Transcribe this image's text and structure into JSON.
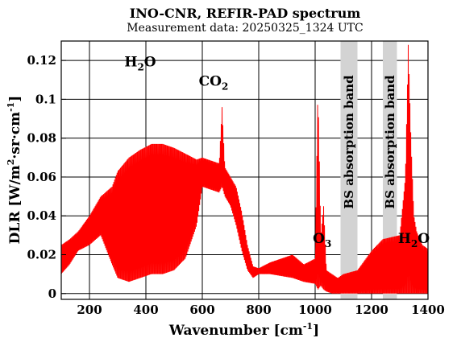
{
  "chart_data": {
    "type": "line",
    "title": "INO-CNR, REFIR-PAD spectrum",
    "subtitle": "Measurement data: 20250325_1324 UTC",
    "xlabel": {
      "base": "Wavenumber [cm",
      "sup": "-1",
      "tail": "]"
    },
    "ylabel": {
      "p1": "DLR [W/m",
      "sup1": "2",
      "p2": "·sr·cm",
      "sup2": "-1",
      "p3": "]"
    },
    "xlim": [
      100,
      1400
    ],
    "ylim": [
      -0.003,
      0.13
    ],
    "x_ticks": [
      200,
      400,
      600,
      800,
      1000,
      1200,
      1400
    ],
    "x_tick_labels": [
      "200",
      "400",
      "600",
      "800",
      "1000",
      "1200",
      "1400"
    ],
    "y_ticks": [
      0,
      0.02,
      0.04,
      0.06,
      0.08,
      0.1,
      0.12
    ],
    "y_tick_labels": [
      "0",
      "0.02",
      "0.04",
      "0.06",
      "0.08",
      "0.1",
      "0.12"
    ],
    "grid": true,
    "series": [
      {
        "color": "#ff0000",
        "envelope": {
          "x": [
            100,
            130,
            160,
            200,
            240,
            280,
            300,
            340,
            380,
            420,
            460,
            500,
            540,
            580,
            600,
            620,
            640,
            660,
            670,
            680,
            700,
            720,
            740,
            760,
            780,
            800,
            840,
            880,
            920,
            960,
            1000,
            1010,
            1020,
            1030,
            1040,
            1060,
            1080,
            1100,
            1150,
            1200,
            1240,
            1300,
            1320,
            1330,
            1340,
            1350,
            1360,
            1380,
            1400
          ],
          "upper": [
            0.025,
            0.028,
            0.032,
            0.04,
            0.05,
            0.055,
            0.063,
            0.07,
            0.074,
            0.077,
            0.077,
            0.075,
            0.072,
            0.069,
            0.07,
            0.069,
            0.068,
            0.067,
            0.096,
            0.065,
            0.06,
            0.055,
            0.042,
            0.025,
            0.014,
            0.013,
            0.016,
            0.018,
            0.02,
            0.015,
            0.018,
            0.106,
            0.03,
            0.045,
            0.012,
            0.01,
            0.008,
            0.01,
            0.012,
            0.022,
            0.028,
            0.03,
            0.06,
            0.128,
            0.078,
            0.04,
            0.032,
            0.025,
            0.023
          ],
          "lower": [
            0.01,
            0.015,
            0.022,
            0.025,
            0.03,
            0.015,
            0.008,
            0.006,
            0.008,
            0.01,
            0.01,
            0.012,
            0.018,
            0.035,
            0.055,
            0.054,
            0.053,
            0.052,
            0.055,
            0.05,
            0.045,
            0.035,
            0.022,
            0.012,
            0.008,
            0.01,
            0.01,
            0.009,
            0.008,
            0.006,
            0.005,
            0.002,
            0.004,
            0.002,
            0.001,
            0.0,
            0.0,
            0.0,
            0.0,
            0.0,
            0.0,
            0.0,
            0.0,
            0.0,
            0.0,
            0.0,
            0.0,
            0.0,
            0.0
          ]
        }
      }
    ],
    "bands": [
      {
        "x": [
          1090,
          1150
        ],
        "label": "BS absorption band"
      },
      {
        "x": [
          1240,
          1290
        ],
        "label": "BS absorption band"
      }
    ],
    "annotations": [
      {
        "base": "H",
        "sub": "2",
        "tail": "O",
        "x": 380,
        "y": 0.117
      },
      {
        "base": "CO",
        "sub": "2",
        "tail": "",
        "x": 640,
        "y": 0.107
      },
      {
        "base": "O",
        "sub": "3",
        "tail": "",
        "x": 1025,
        "y": 0.026
      },
      {
        "base": "H",
        "sub": "2",
        "tail": "O",
        "x": 1350,
        "y": 0.026
      }
    ]
  }
}
